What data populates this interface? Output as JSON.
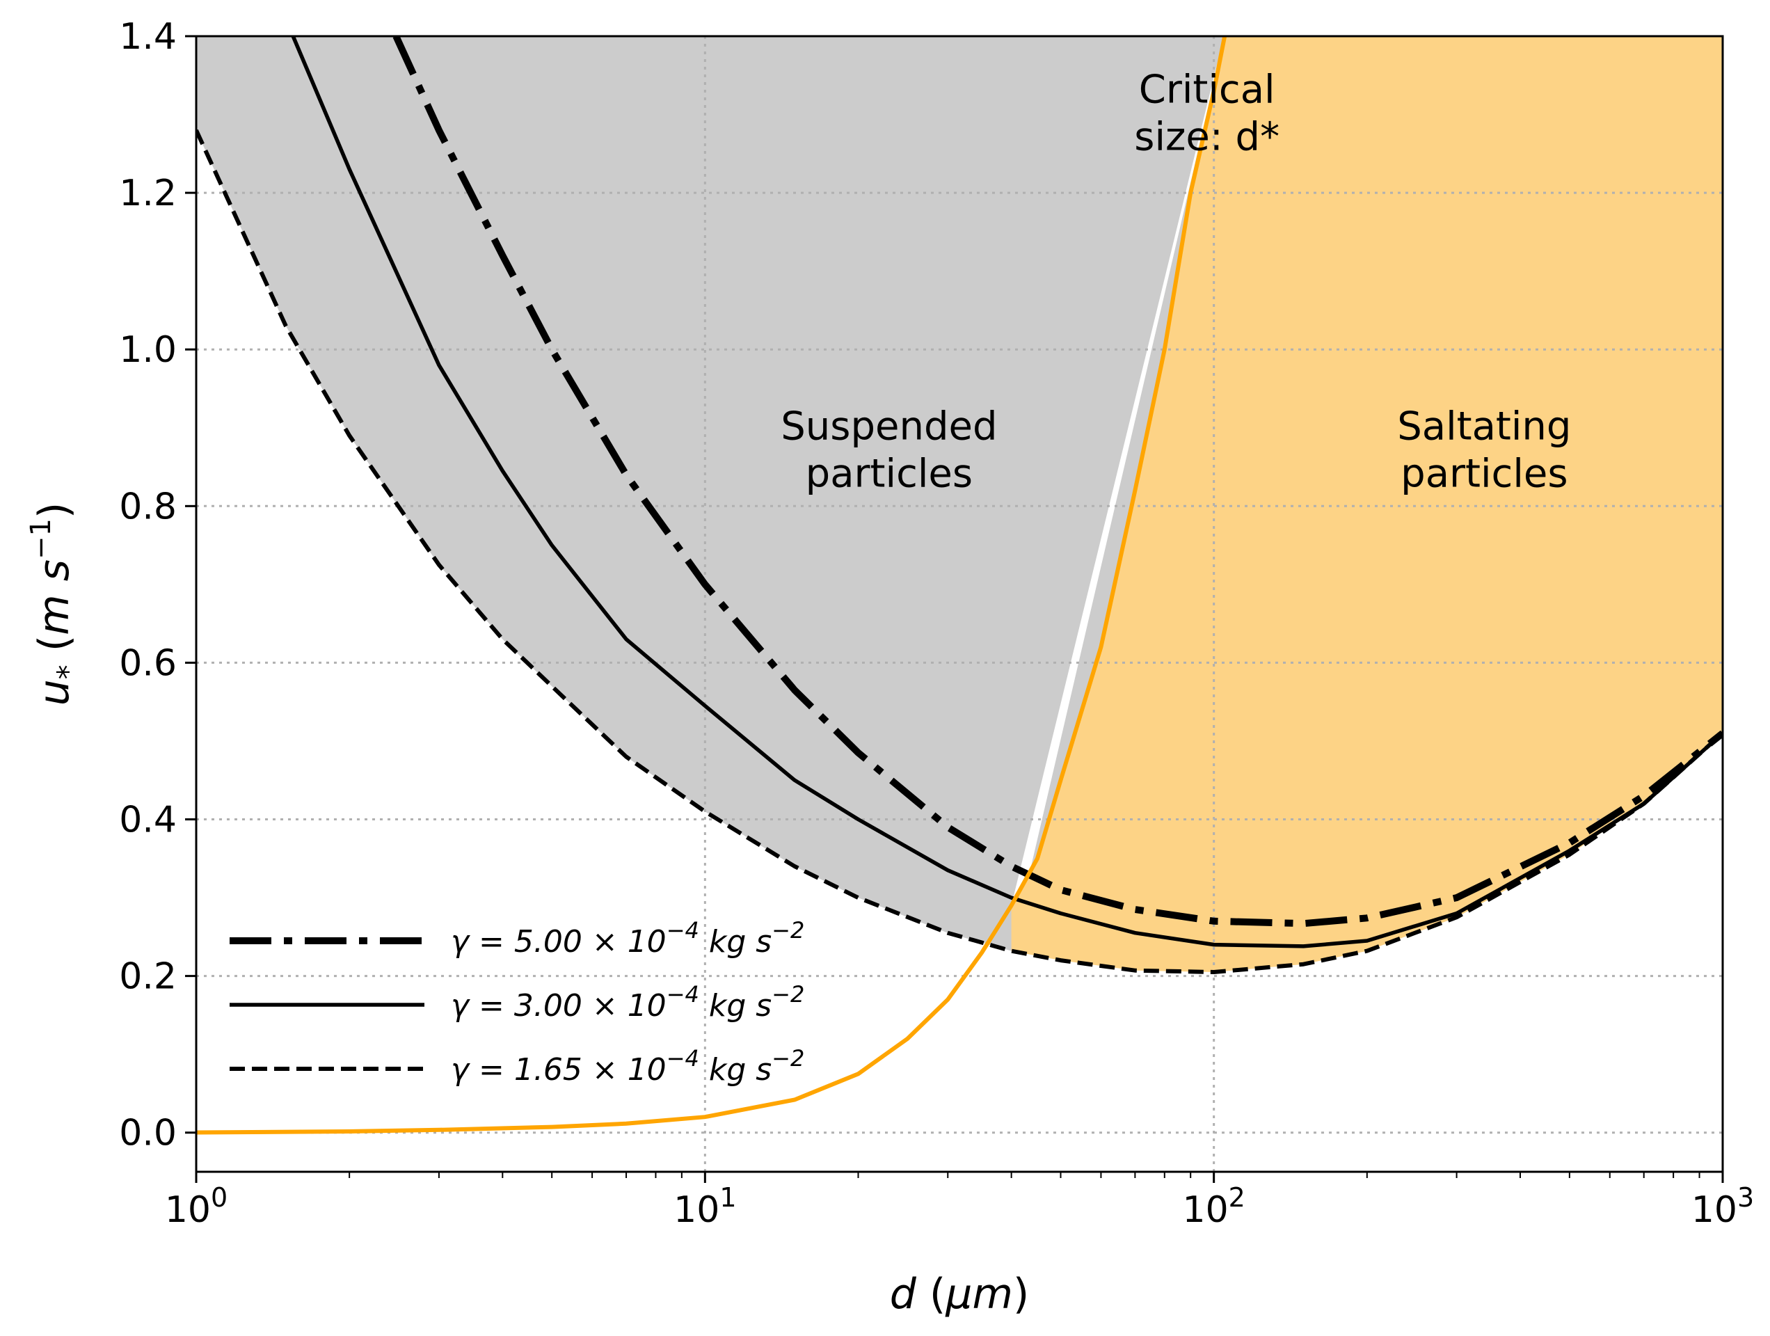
{
  "chart_data": {
    "type": "line",
    "xscale": "log",
    "xlim": [
      1,
      1000
    ],
    "ylim": [
      -0.05,
      1.4
    ],
    "xlabel": "d (μm)",
    "ylabel": "u* (m s⁻¹)",
    "x_ticks": [
      {
        "value": 1,
        "base": "10",
        "exp": "0"
      },
      {
        "value": 10,
        "base": "10",
        "exp": "1"
      },
      {
        "value": 100,
        "base": "10",
        "exp": "2"
      },
      {
        "value": 1000,
        "base": "10",
        "exp": "3"
      }
    ],
    "y_ticks": [
      "0.0",
      "0.2",
      "0.4",
      "0.6",
      "0.8",
      "1.0",
      "1.2",
      "1.4"
    ],
    "grid": true,
    "colors": {
      "suspended_fill": "#cccccc",
      "saltating_fill": "#fdd386",
      "critical_line": "#ffa500",
      "curves": "#000000",
      "grid": "#b0b0b0"
    },
    "regions": [
      {
        "id": "suspended",
        "lines": [
          "Suspended",
          "particles"
        ],
        "x": 23,
        "y": 0.885
      },
      {
        "id": "saltating",
        "lines": [
          "Saltating",
          "particles"
        ],
        "x": 340,
        "y": 0.885
      }
    ],
    "critical_label": {
      "lines": [
        "Critical",
        "size: d*"
      ],
      "x": 100,
      "y": 1.315
    },
    "critical_curve": {
      "name": "Critical size: d*",
      "x": [
        1,
        2,
        3,
        5,
        7,
        10,
        15,
        20,
        25,
        30,
        35,
        40,
        45,
        50,
        60,
        70,
        80,
        90,
        100,
        105
      ],
      "y": [
        0.0002,
        0.0015,
        0.0035,
        0.0072,
        0.0115,
        0.02,
        0.042,
        0.075,
        0.12,
        0.17,
        0.23,
        0.29,
        0.35,
        0.45,
        0.62,
        0.82,
        1.0,
        1.2,
        1.33,
        1.4
      ]
    },
    "series": [
      {
        "name": "γ = 5.00 × 10⁻⁴ kg s⁻²",
        "legend": {
          "prefix": "γ = 5.00 × 10",
          "exp": "−4",
          "unit": " kg s",
          "unit_exp": "−2"
        },
        "style": "dashdot",
        "x": [
          2.47,
          3,
          4,
          5,
          7,
          10,
          15,
          20,
          30,
          40,
          50,
          70,
          100,
          150,
          200,
          300,
          500,
          700,
          1000
        ],
        "y": [
          1.4,
          1.28,
          1.12,
          1.0,
          0.84,
          0.7,
          0.565,
          0.485,
          0.39,
          0.34,
          0.31,
          0.285,
          0.27,
          0.267,
          0.274,
          0.3,
          0.37,
          0.43,
          0.51
        ]
      },
      {
        "name": "γ = 3.00 × 10⁻⁴ kg s⁻²",
        "legend": {
          "prefix": "γ = 3.00 × 10",
          "exp": "−4",
          "unit": " kg s",
          "unit_exp": "−2"
        },
        "style": "solid",
        "x": [
          1.55,
          2,
          3,
          4,
          5,
          7,
          10,
          15,
          20,
          30,
          40,
          50,
          70,
          100,
          150,
          200,
          300,
          500,
          700,
          1000
        ],
        "y": [
          1.4,
          1.23,
          0.98,
          0.845,
          0.75,
          0.63,
          0.545,
          0.45,
          0.4,
          0.335,
          0.3,
          0.28,
          0.255,
          0.24,
          0.238,
          0.245,
          0.28,
          0.36,
          0.42,
          0.51
        ]
      },
      {
        "name": "γ = 1.65 × 10⁻⁴ kg s⁻²",
        "legend": {
          "prefix": "γ = 1.65 × 10",
          "exp": "−4",
          "unit": " kg s",
          "unit_exp": "−2"
        },
        "style": "dashed",
        "x": [
          1,
          1.5,
          2,
          3,
          4,
          5,
          7,
          10,
          15,
          20,
          30,
          40,
          50,
          70,
          100,
          150,
          200,
          300,
          500,
          700,
          1000
        ],
        "y": [
          1.28,
          1.03,
          0.89,
          0.725,
          0.63,
          0.57,
          0.48,
          0.41,
          0.34,
          0.3,
          0.255,
          0.232,
          0.22,
          0.207,
          0.205,
          0.215,
          0.232,
          0.275,
          0.355,
          0.42,
          0.51
        ]
      }
    ]
  }
}
